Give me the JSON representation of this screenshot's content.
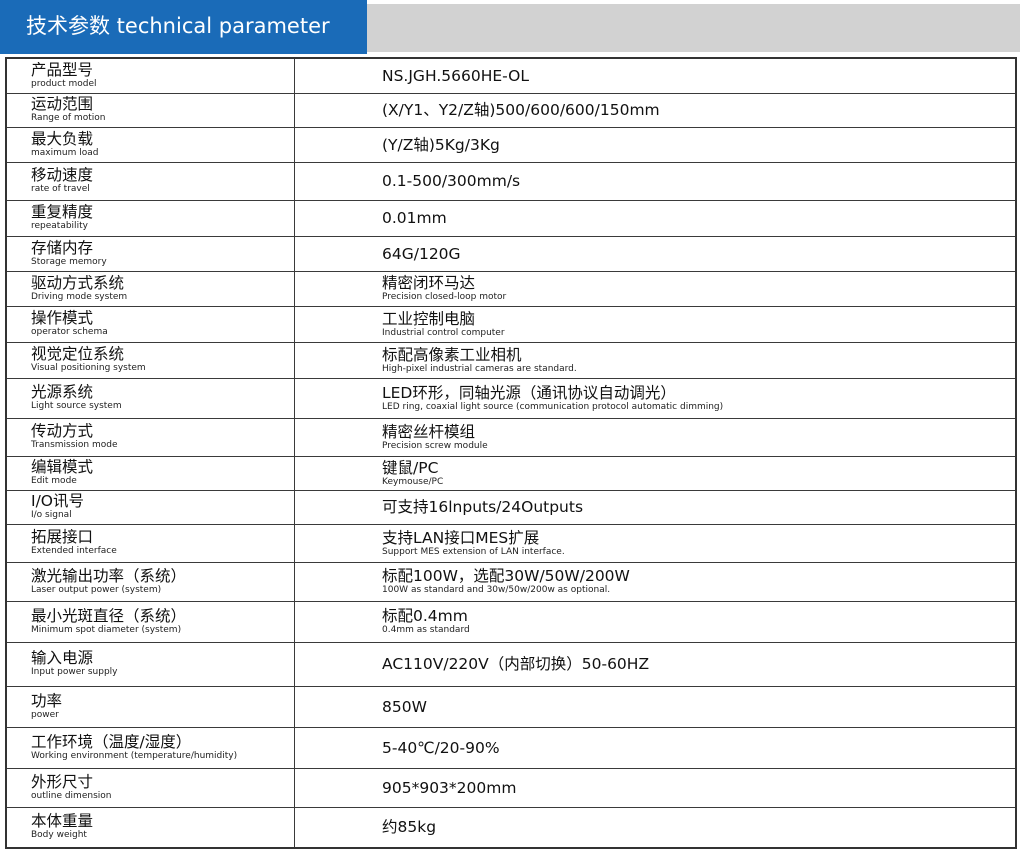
{
  "header": {
    "title": "技术参数  technical parameter"
  },
  "rows": [
    {
      "cn": "产品型号",
      "en": "product model",
      "value": "NS.JGH.5660HE-OL",
      "value_en": ""
    },
    {
      "cn": "运动范围",
      "en": "Range of motion",
      "value": "(X/Y1、Y2/Z轴)500/600/600/150mm",
      "value_en": ""
    },
    {
      "cn": "最大负载",
      "en": "maximum load",
      "value": "(Y/Z轴)5Kg/3Kg",
      "value_en": ""
    },
    {
      "cn": "移动速度",
      "en": "rate of travel",
      "value": "0.1-500/300mm/s",
      "value_en": ""
    },
    {
      "cn": "重复精度",
      "en": "repeatability",
      "value": "0.01mm",
      "value_en": ""
    },
    {
      "cn": "存储内存",
      "en": "Storage memory",
      "value": "64G/120G",
      "value_en": ""
    },
    {
      "cn": "驱动方式系统",
      "en": "Driving mode system",
      "value": "精密闭环马达",
      "value_en": "Precision closed-loop motor"
    },
    {
      "cn": "操作模式",
      "en": "operator schema",
      "value": "工业控制电脑",
      "value_en": "Industrial control computer"
    },
    {
      "cn": "视觉定位系统",
      "en": "Visual positioning system",
      "value": "标配高像素工业相机",
      "value_en": "High-pixel industrial cameras are standard."
    },
    {
      "cn": "光源系统",
      "en": "Light source system",
      "value": "LED环形，同轴光源（通讯协议自动调光）",
      "value_en": "LED ring, coaxial light source (communication protocol automatic dimming)"
    },
    {
      "cn": "传动方式",
      "en": "Transmission mode",
      "value": "精密丝杆模组",
      "value_en": "Precision screw module"
    },
    {
      "cn": "编辑模式",
      "en": "Edit mode",
      "value": "键鼠/PC",
      "value_en": "Keymouse/PC"
    },
    {
      "cn": "I/O讯号",
      "en": "I/o signal",
      "value": "可支持16lnputs/24Outputs",
      "value_en": ""
    },
    {
      "cn": "拓展接口",
      "en": "Extended interface",
      "value": "支持LAN接口MES扩展",
      "value_en": "Support MES extension of LAN interface."
    },
    {
      "cn": "激光输出功率（系统）",
      "en": "Laser output power (system)",
      "value": "标配100W，选配30W/50W/200W",
      "value_en": "100W as standard and 30w/50w/200w as optional."
    },
    {
      "cn": "最小光斑直径（系统）",
      "en": "Minimum spot diameter (system)",
      "value": "标配0.4mm",
      "value_en": "0.4mm as standard"
    },
    {
      "cn": "输入电源",
      "en": "Input power supply",
      "value": "AC110V/220V（内部切换）50-60HZ",
      "value_en": ""
    },
    {
      "cn": "功率",
      "en": "power",
      "value": "850W",
      "value_en": ""
    },
    {
      "cn": "工作环境（温度/湿度）",
      "en": "Working environment (temperature/humidity)",
      "value": "5-40℃/20-90%",
      "value_en": ""
    },
    {
      "cn": "外形尺寸",
      "en": "outline dimension",
      "value": "905*903*200mm",
      "value_en": ""
    },
    {
      "cn": "本体重量",
      "en": "Body weight",
      "value": "约85kg",
      "value_en": ""
    }
  ]
}
